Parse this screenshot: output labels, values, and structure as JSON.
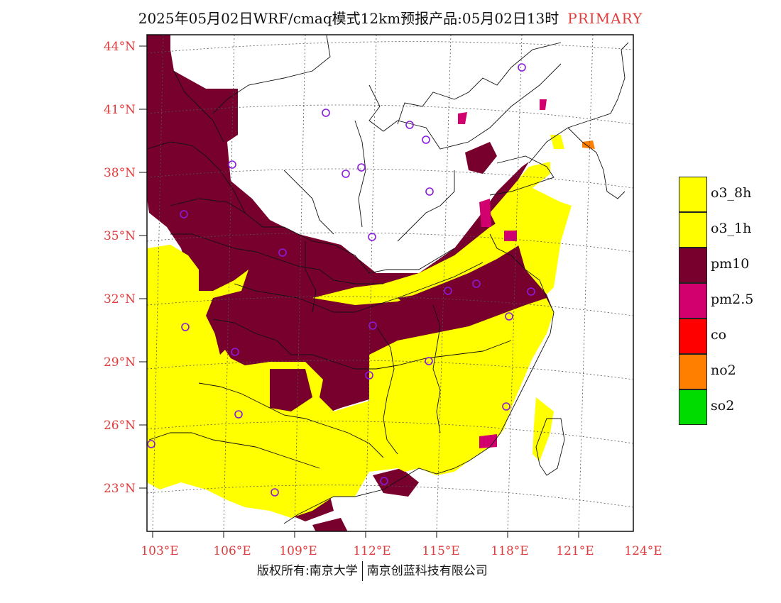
{
  "title": {
    "text": "2025年05月02日WRF/cmaq模式12km预报产品:05月02日13时",
    "tag": "PRIMARY"
  },
  "map": {
    "lat_labels": [
      "44°N",
      "41°N",
      "38°N",
      "35°N",
      "32°N",
      "29°N",
      "26°N",
      "23°N"
    ],
    "lon_labels": [
      "103°E",
      "106°E",
      "109°E",
      "112°E",
      "115°E",
      "118°E",
      "121°E",
      "124°E"
    ],
    "pollutant_colors": {
      "o3_8h": "#ffff00",
      "o3_1h": "#ffff00",
      "pm10": "#78002d",
      "pm2.5": "#d2006e",
      "co": "#ff0000",
      "no2": "#ff7f00",
      "so2": "#00dc00"
    },
    "station_marker_color": "#8c1adc"
  },
  "legend": {
    "items": [
      {
        "label": "o3_8h",
        "color": "#ffff00"
      },
      {
        "label": "o3_1h",
        "color": "#ffff00"
      },
      {
        "label": "pm10",
        "color": "#78002d"
      },
      {
        "label": "pm2.5",
        "color": "#d2006e"
      },
      {
        "label": "co",
        "color": "#ff0000"
      },
      {
        "label": "no2",
        "color": "#ff7f00"
      },
      {
        "label": "so2",
        "color": "#00dc00"
      }
    ]
  },
  "footer": {
    "left": "版权所有:南京大学",
    "right": "南京创蓝科技有限公司"
  }
}
